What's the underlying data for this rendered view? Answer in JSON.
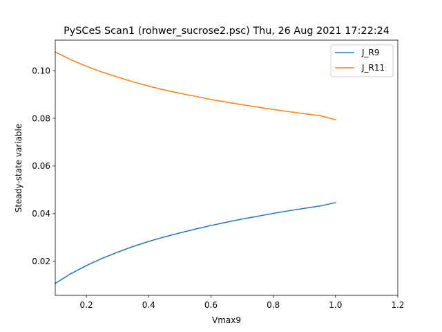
{
  "chart_data": {
    "type": "line",
    "title": "PySCeS Scan1 (rohwer_sucrose2.psc) Thu, 26 Aug 2021 17:22:24",
    "xlabel": "Vmax9",
    "ylabel": "Steady-state variable",
    "xlim": [
      0.1,
      1.2
    ],
    "ylim": [
      0.0057,
      0.1128
    ],
    "xticks": [
      0.2,
      0.4,
      0.6,
      0.8,
      1.0,
      1.2
    ],
    "xtick_labels": [
      "0.2",
      "0.4",
      "0.6",
      "0.8",
      "1.0",
      "1.2"
    ],
    "yticks": [
      0.02,
      0.04,
      0.06,
      0.08,
      0.1
    ],
    "ytick_labels": [
      "0.02",
      "0.04",
      "0.06",
      "0.08",
      "0.10"
    ],
    "grid": false,
    "legend_position": "top-right",
    "series": [
      {
        "name": "J_R9",
        "color": "#1f77b4",
        "x": [
          0.1,
          0.15,
          0.2,
          0.25,
          0.3,
          0.35,
          0.4,
          0.45,
          0.5,
          0.55,
          0.6,
          0.65,
          0.7,
          0.75,
          0.8,
          0.85,
          0.9,
          0.95,
          1.0
        ],
        "y": [
          0.0107,
          0.0148,
          0.0182,
          0.0212,
          0.0238,
          0.0262,
          0.0283,
          0.0302,
          0.0319,
          0.0335,
          0.035,
          0.0364,
          0.0377,
          0.0389,
          0.0401,
          0.0412,
          0.0422,
          0.0432,
          0.0446
        ]
      },
      {
        "name": "J_R11",
        "color": "#ff7f0e",
        "x": [
          0.1,
          0.15,
          0.2,
          0.25,
          0.3,
          0.35,
          0.4,
          0.45,
          0.5,
          0.55,
          0.6,
          0.65,
          0.7,
          0.75,
          0.8,
          0.85,
          0.9,
          0.95,
          1.0
        ],
        "y": [
          0.1078,
          0.1046,
          0.1018,
          0.0994,
          0.0973,
          0.0953,
          0.0935,
          0.0919,
          0.0905,
          0.0892,
          0.0879,
          0.0868,
          0.0857,
          0.0847,
          0.0837,
          0.0828,
          0.0819,
          0.0811,
          0.0794
        ]
      }
    ]
  }
}
